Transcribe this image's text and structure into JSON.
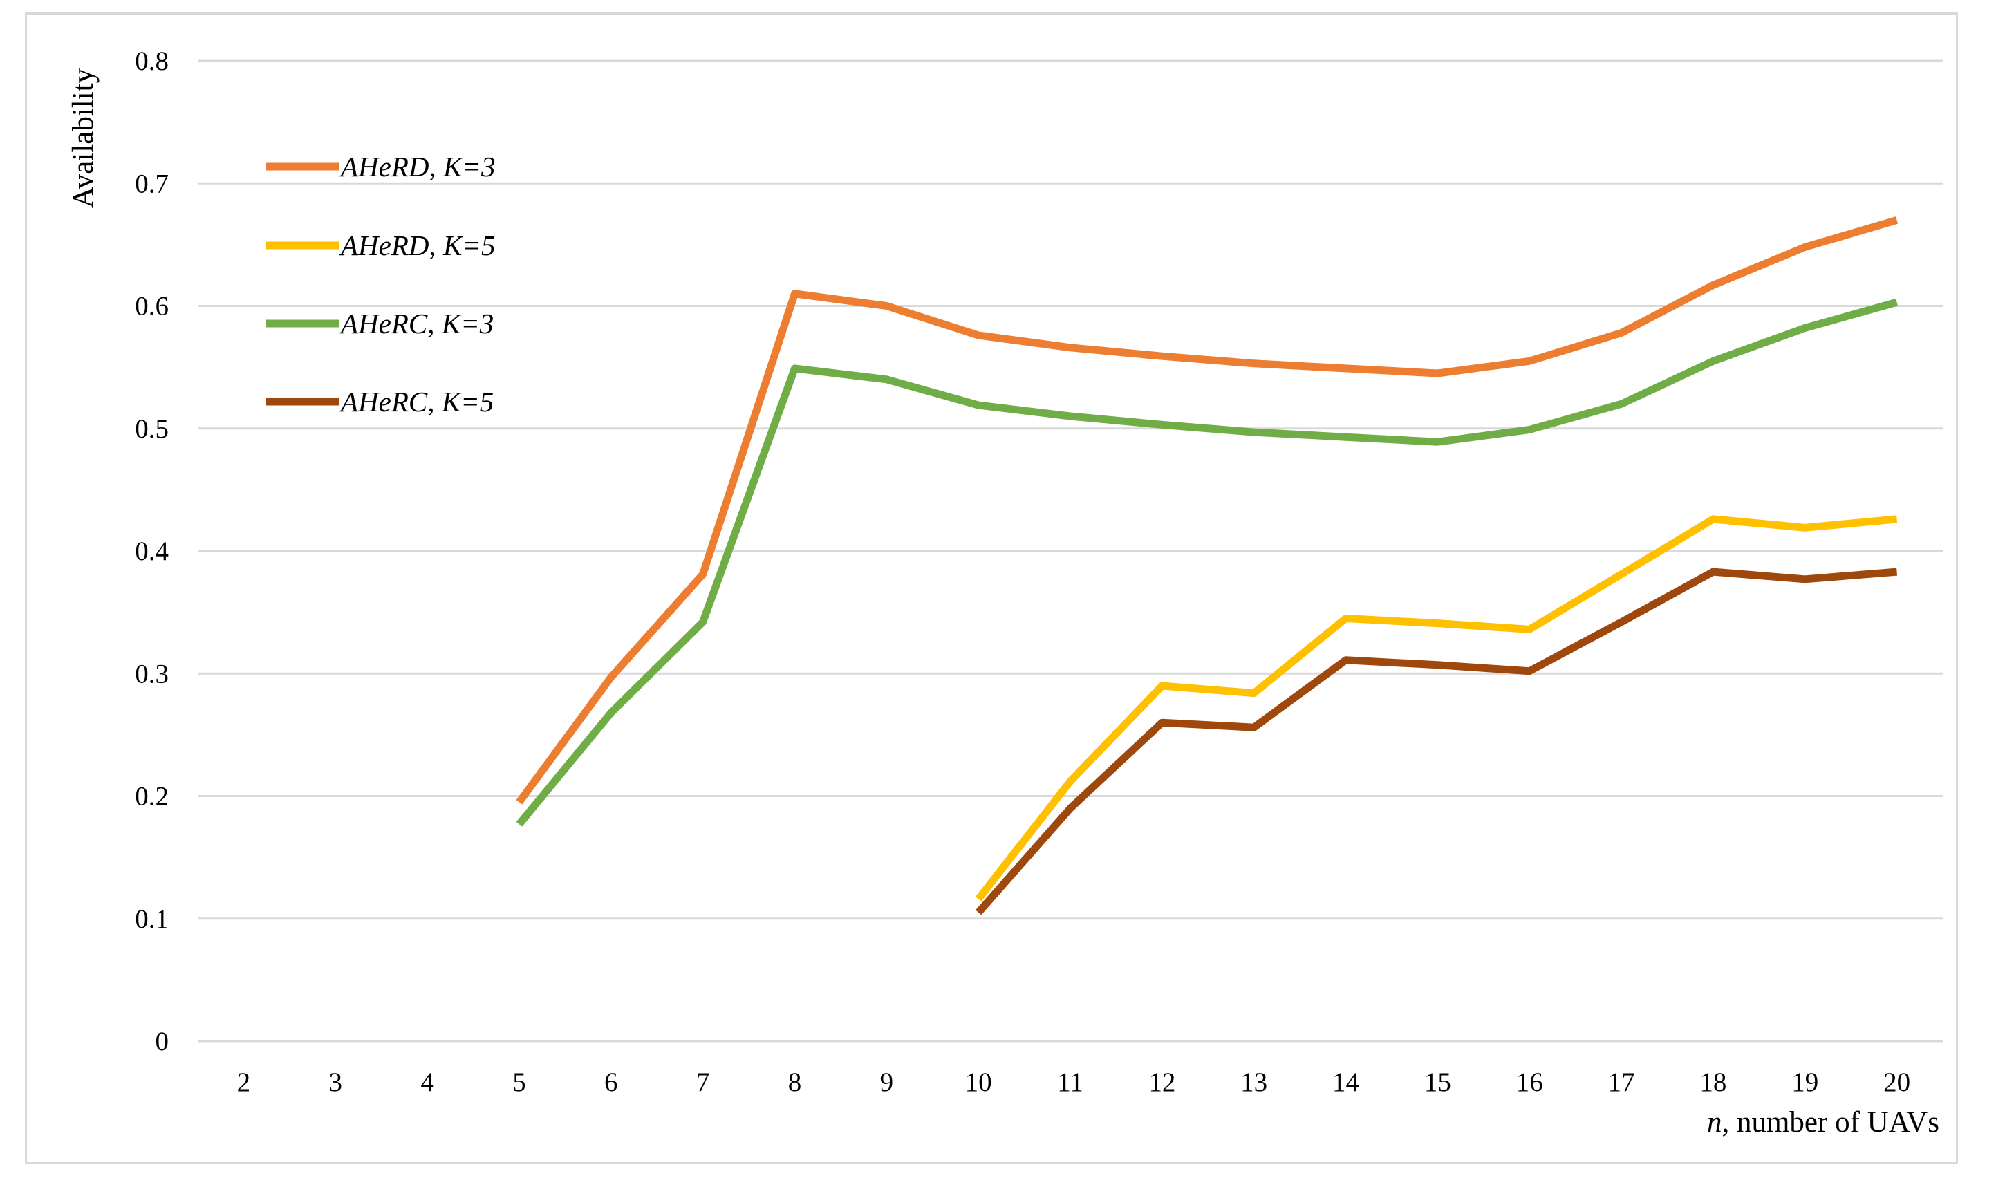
{
  "chart_data": {
    "type": "line",
    "title": "",
    "xlabel_italic": "n",
    "xlabel_rest": ", number of UAVs",
    "ylabel": "Availability",
    "ylim": [
      0,
      0.8
    ],
    "yticks": [
      "0",
      "0.1",
      "0.2",
      "0.3",
      "0.4",
      "0.5",
      "0.6",
      "0.7",
      "0.8"
    ],
    "categories": [
      "2",
      "3",
      "4",
      "5",
      "6",
      "7",
      "8",
      "9",
      "10",
      "11",
      "12",
      "13",
      "14",
      "15",
      "16",
      "17",
      "18",
      "19",
      "20"
    ],
    "grid": true,
    "legend_position": "top-left",
    "series": [
      {
        "name": "AHeRD, K=3",
        "color": "#ED7D31",
        "values": [
          null,
          null,
          null,
          0.195,
          0.297,
          0.381,
          0.61,
          0.6,
          0.576,
          0.566,
          0.559,
          0.553,
          0.549,
          0.545,
          0.555,
          0.578,
          0.617,
          0.648,
          0.67
        ]
      },
      {
        "name": "AHeRD, K=5",
        "color": "#FFC000",
        "values": [
          null,
          null,
          null,
          null,
          null,
          null,
          null,
          null,
          0.116,
          0.212,
          0.29,
          0.284,
          0.345,
          0.341,
          0.336,
          0.381,
          0.426,
          0.419,
          0.426
        ]
      },
      {
        "name": "AHeRC, K=3",
        "color": "#70AD47",
        "values": [
          null,
          null,
          null,
          0.177,
          0.268,
          0.342,
          0.549,
          0.54,
          0.519,
          0.51,
          0.503,
          0.497,
          0.493,
          0.489,
          0.499,
          0.52,
          0.555,
          0.582,
          0.603
        ]
      },
      {
        "name": "AHeRC, K=5",
        "color": "#9E480E",
        "values": [
          null,
          null,
          null,
          null,
          null,
          null,
          null,
          null,
          0.105,
          0.19,
          0.26,
          0.256,
          0.311,
          0.307,
          0.302,
          0.342,
          0.383,
          0.377,
          0.383
        ]
      }
    ]
  }
}
